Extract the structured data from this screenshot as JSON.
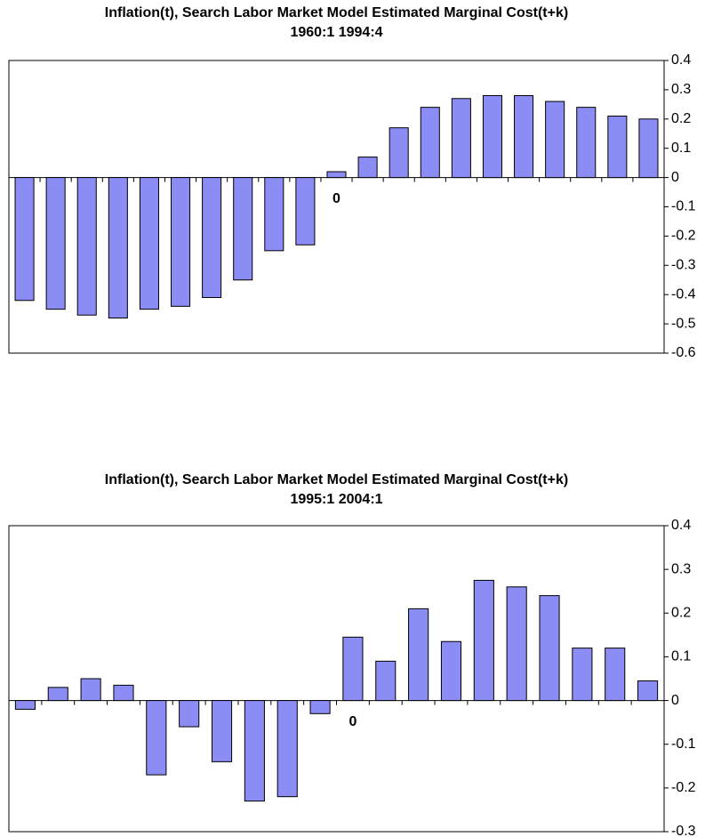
{
  "chart_data": [
    {
      "type": "bar",
      "title": "Inflation(t), Search Labor Market Model Estimated Marginal Cost(t+k)",
      "subtitle": "1960:1 1994:4",
      "categories": [
        null,
        null,
        null,
        null,
        null,
        null,
        null,
        null,
        null,
        null,
        "0",
        null,
        null,
        null,
        null,
        null,
        null,
        null,
        null,
        null,
        null
      ],
      "values": [
        -0.42,
        -0.45,
        -0.47,
        -0.48,
        -0.45,
        -0.44,
        -0.41,
        -0.35,
        -0.25,
        -0.23,
        0.02,
        0.07,
        0.17,
        0.24,
        0.27,
        0.28,
        0.28,
        0.26,
        0.24,
        0.21,
        0.2
      ],
      "color": "#8c8cf5",
      "ylim": [
        -0.6,
        0.4
      ],
      "yticks": [
        0.4,
        0.3,
        0.2,
        0.1,
        0,
        -0.1,
        -0.2,
        -0.3,
        -0.4,
        -0.5,
        -0.6
      ]
    },
    {
      "type": "bar",
      "title": "Inflation(t), Search Labor Market Model Estimated Marginal Cost(t+k)",
      "subtitle": "1995:1 2004:1",
      "categories": [
        null,
        null,
        null,
        null,
        null,
        null,
        null,
        null,
        null,
        null,
        "0",
        null,
        null,
        null,
        null,
        null,
        null,
        null,
        null,
        null
      ],
      "values": [
        -0.02,
        0.03,
        0.05,
        0.035,
        -0.17,
        -0.06,
        -0.14,
        -0.23,
        -0.22,
        -0.03,
        0.145,
        0.09,
        0.21,
        0.135,
        0.275,
        0.26,
        0.24,
        0.12,
        0.12,
        0.045
      ],
      "color": "#8c8cf5",
      "ylim": [
        -0.3,
        0.4
      ],
      "yticks": [
        0.4,
        0.3,
        0.2,
        0.1,
        0,
        -0.1,
        -0.2,
        -0.3
      ]
    }
  ]
}
